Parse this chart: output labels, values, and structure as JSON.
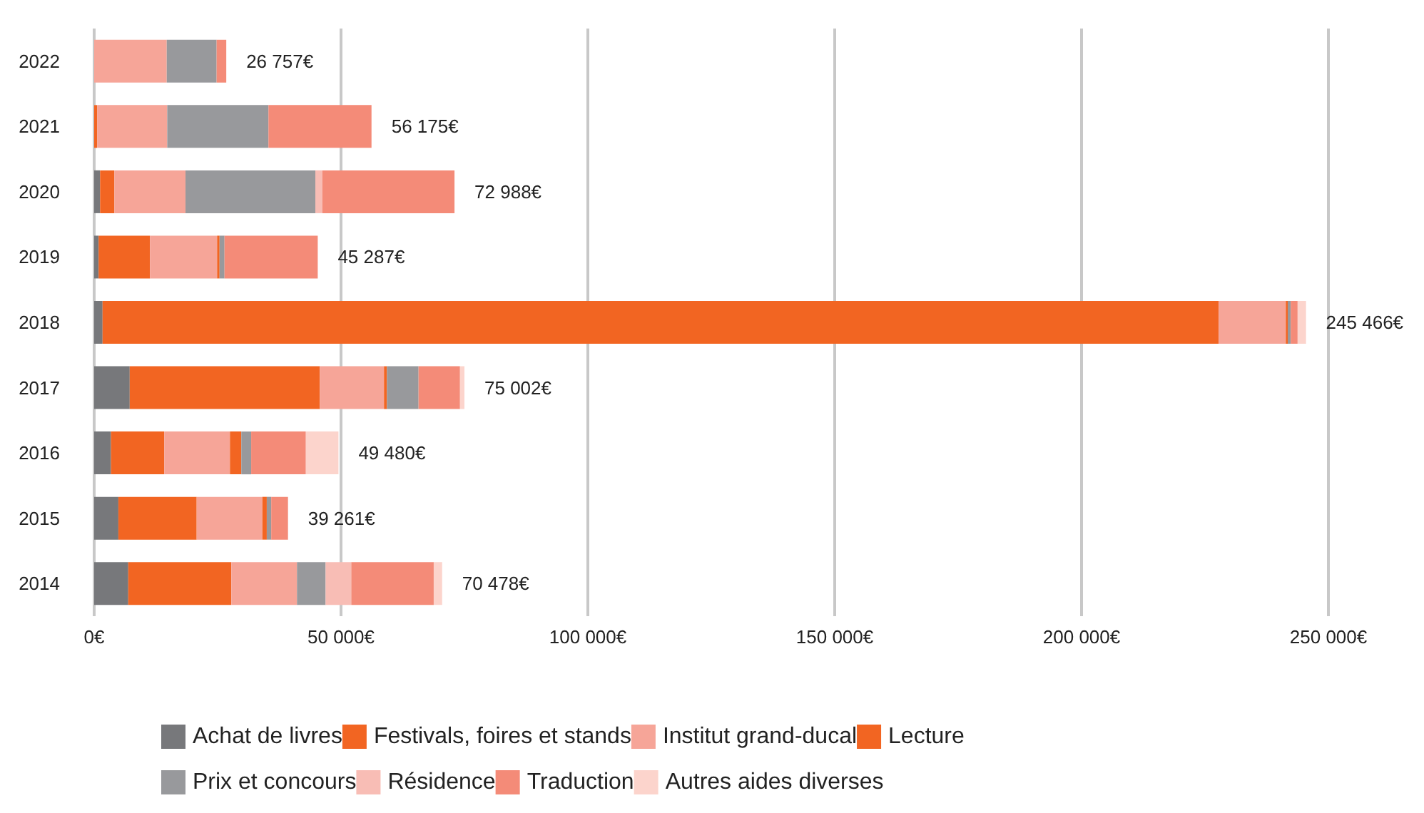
{
  "chart_data": {
    "type": "bar",
    "orientation": "horizontal",
    "stacked": true,
    "categories": [
      "2022",
      "2021",
      "2020",
      "2019",
      "2018",
      "2017",
      "2016",
      "2015",
      "2014"
    ],
    "series": [
      {
        "name": "Achat de livres",
        "color": "#77787b",
        "values": [
          null,
          null,
          1200,
          900,
          1700,
          7200,
          3400,
          4900,
          6900
        ]
      },
      {
        "name": "Festivals, foires et stands",
        "color": "#f26522",
        "values": [
          null,
          600,
          2900,
          10400,
          226066,
          38502,
          10800,
          15861,
          20878
        ]
      },
      {
        "name": "Institut grand-ducal",
        "color": "#f6a598",
        "values": [
          14700,
          14200,
          14400,
          13600,
          13600,
          13000,
          13300,
          13300,
          13300
        ]
      },
      {
        "name": "Lecture",
        "color": "#f26522",
        "values": [
          null,
          null,
          null,
          500,
          400,
          600,
          2300,
          900,
          null
        ]
      },
      {
        "name": "Prix et concours",
        "color": "#98999c",
        "values": [
          10100,
          20500,
          26300,
          1000,
          600,
          6400,
          2000,
          900,
          5800
        ]
      },
      {
        "name": "Résidence",
        "color": "#f8bdb5",
        "values": [
          null,
          null,
          1400,
          null,
          null,
          null,
          null,
          null,
          5200
        ]
      },
      {
        "name": "Traduction",
        "color": "#f48b78",
        "values": [
          1957,
          20875,
          26788,
          18887,
          1400,
          8400,
          11080,
          3400,
          16700
        ]
      },
      {
        "name": "Autres aides diverses",
        "color": "#fcd4cc",
        "values": [
          null,
          null,
          null,
          null,
          1700,
          900,
          6600,
          null,
          1700
        ]
      }
    ],
    "totals": [
      "26 757€",
      "56 175€",
      "72 988€",
      "45 287€",
      "245 466€",
      "75 002€",
      "49 480€",
      "39 261€",
      "70 478€"
    ],
    "xlim": [
      0,
      250000
    ],
    "xticks": [
      {
        "value": 0,
        "label": "0€"
      },
      {
        "value": 50000,
        "label": "50 000€"
      },
      {
        "value": 100000,
        "label": "100 000€"
      },
      {
        "value": 150000,
        "label": "150 000€"
      },
      {
        "value": 200000,
        "label": "200 000€"
      },
      {
        "value": 250000,
        "label": "250 000€"
      }
    ],
    "grid": "x",
    "legend": "bottom"
  }
}
